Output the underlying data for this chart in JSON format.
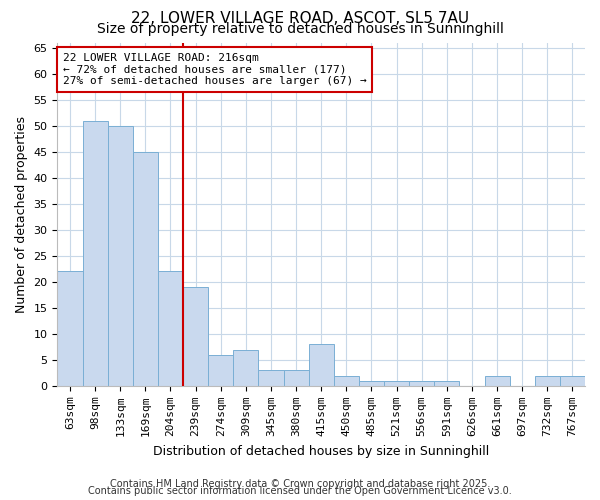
{
  "title1": "22, LOWER VILLAGE ROAD, ASCOT, SL5 7AU",
  "title2": "Size of property relative to detached houses in Sunninghill",
  "xlabel": "Distribution of detached houses by size in Sunninghill",
  "ylabel": "Number of detached properties",
  "categories": [
    "63sqm",
    "98sqm",
    "133sqm",
    "169sqm",
    "204sqm",
    "239sqm",
    "274sqm",
    "309sqm",
    "345sqm",
    "380sqm",
    "415sqm",
    "450sqm",
    "485sqm",
    "521sqm",
    "556sqm",
    "591sqm",
    "626sqm",
    "661sqm",
    "697sqm",
    "732sqm",
    "767sqm"
  ],
  "values": [
    22,
    51,
    50,
    45,
    22,
    19,
    6,
    7,
    3,
    3,
    8,
    2,
    1,
    1,
    1,
    1,
    0,
    2,
    0,
    2,
    2
  ],
  "bar_color": "#c9d9ee",
  "bar_edge_color": "#7aafd4",
  "background_color": "#ffffff",
  "plot_bg_color": "#ffffff",
  "grid_color": "#c8d8e8",
  "vline_x_pos": 4.5,
  "vline_color": "#cc0000",
  "annotation_line1": "22 LOWER VILLAGE ROAD: 216sqm",
  "annotation_line2": "← 72% of detached houses are smaller (177)",
  "annotation_line3": "27% of semi-detached houses are larger (67) →",
  "annotation_box_color": "#cc0000",
  "annotation_box_fill": "#ffffff",
  "ylim": [
    0,
    66
  ],
  "yticks": [
    0,
    5,
    10,
    15,
    20,
    25,
    30,
    35,
    40,
    45,
    50,
    55,
    60,
    65
  ],
  "footer1": "Contains HM Land Registry data © Crown copyright and database right 2025.",
  "footer2": "Contains public sector information licensed under the Open Government Licence v3.0.",
  "title1_fontsize": 11,
  "title2_fontsize": 10,
  "axis_label_fontsize": 9,
  "tick_fontsize": 8,
  "annotation_fontsize": 8,
  "footer_fontsize": 7
}
